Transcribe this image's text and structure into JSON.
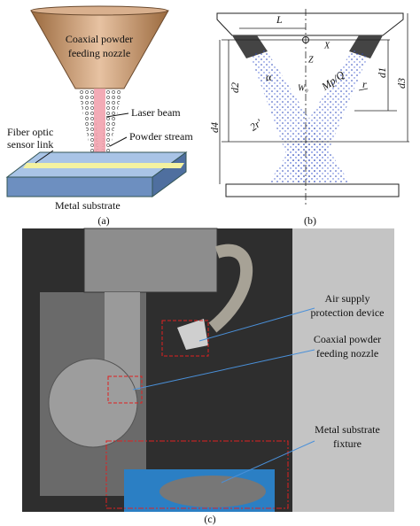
{
  "panel_a": {
    "caption": "(a)",
    "nozzle": [
      "Coaxial powder",
      "feeding nozzle"
    ],
    "laser": "Laser beam",
    "powder": "Powder stream",
    "sensor": [
      "Fiber optic",
      "sensor link"
    ],
    "substrate": "Metal substrate"
  },
  "panel_b": {
    "caption": "(b)",
    "L": "L",
    "X": "X",
    "Z": "Z",
    "alpha": "α",
    "W0": "W₀",
    "MpQ": "Mp/Q",
    "r": "r",
    "two_r": "2r'",
    "d1": "d1",
    "d2": "d2",
    "d3": "d3",
    "d4": "d4"
  },
  "panel_c": {
    "caption": "(c)",
    "air": [
      "Air supply",
      "protection device"
    ],
    "nozzle": [
      "Coaxial powder",
      "feeding nozzle"
    ],
    "fixture": [
      "Metal substrate",
      "fixture"
    ]
  }
}
